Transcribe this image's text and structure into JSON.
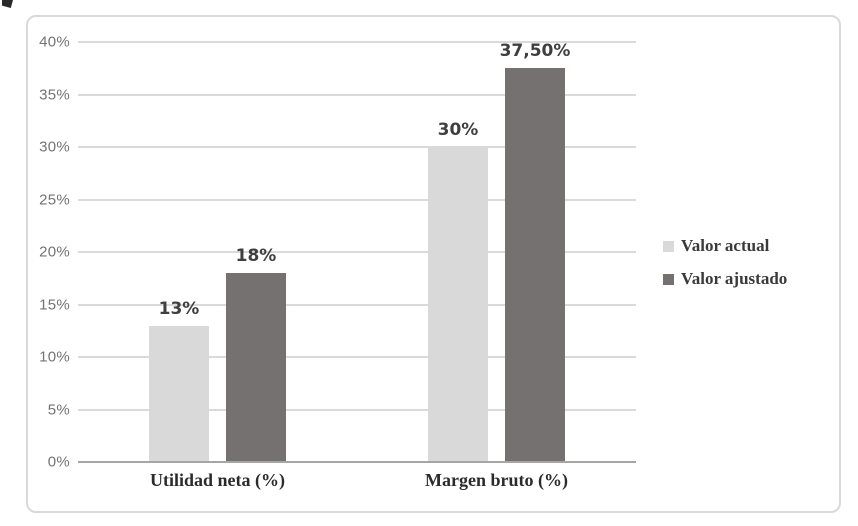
{
  "figure": {
    "background": "#ffffff",
    "border_color": "#d9d9d9"
  },
  "chart_data": {
    "type": "bar",
    "title": "",
    "xlabel": "",
    "ylabel": "",
    "categories": [
      "Utilidad neta (%)",
      "Margen bruto (%)"
    ],
    "series": [
      {
        "name": "Valor actual",
        "values": [
          13,
          30
        ],
        "labels": [
          "13%",
          "30%"
        ],
        "color": "#d9d9d9"
      },
      {
        "name": "Valor ajustado",
        "values": [
          18,
          37.5
        ],
        "labels": [
          "18%",
          "37,50%"
        ],
        "color": "#767171"
      }
    ],
    "ylim": [
      0,
      40
    ],
    "y_ticks": [
      0,
      5,
      10,
      15,
      20,
      25,
      30,
      35,
      40
    ],
    "y_tick_labels": [
      "0%",
      "5%",
      "10%",
      "15%",
      "20%",
      "25%",
      "30%",
      "35%",
      "40%"
    ],
    "grid": true,
    "legend_position": "right"
  },
  "colors": {
    "gridline": "#dadada",
    "axis_line": "#a6a6a6",
    "tick_label": "#737373",
    "data_label": "#3f3f3f",
    "category_label": "#2b2b2b",
    "legend_label": "#3a3a3a"
  }
}
